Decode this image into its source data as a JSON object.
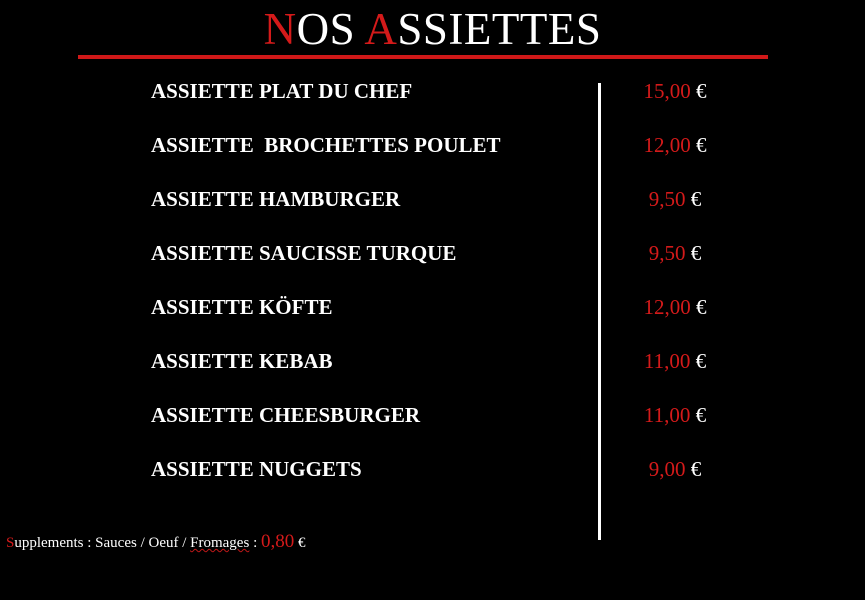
{
  "header": {
    "title_parts": [
      "N",
      "OS ",
      "A",
      "SSIETTES"
    ],
    "accent_color": "#d41a1a"
  },
  "menu": {
    "items": [
      {
        "name": "ASSIETTE PLAT DU CHEF",
        "price": "15,00",
        "currency": "€"
      },
      {
        "name": "ASSIETTE  BROCHETTES POULET",
        "price": "12,00",
        "currency": "€"
      },
      {
        "name": "ASSIETTE HAMBURGER",
        "price": "9,50",
        "currency": "€"
      },
      {
        "name": "ASSIETTE SAUCISSE TURQUE",
        "price": "9,50",
        "currency": "€"
      },
      {
        "name": "ASSIETTE KÖFTE",
        "price": "12,00",
        "currency": "€"
      },
      {
        "name": "ASSIETTE KEBAB",
        "price": "11,00",
        "currency": "€"
      },
      {
        "name": "ASSIETTE CHEESBURGER",
        "price": "11,00",
        "currency": "€"
      },
      {
        "name": "ASSIETTE NUGGETS",
        "price": "9,00",
        "currency": "€"
      }
    ]
  },
  "supplements": {
    "initial": "S",
    "text": "upplements : Sauces / Oeuf / ",
    "last": "Fromages",
    "sep": " : ",
    "price": "0,80",
    "currency": " €"
  }
}
